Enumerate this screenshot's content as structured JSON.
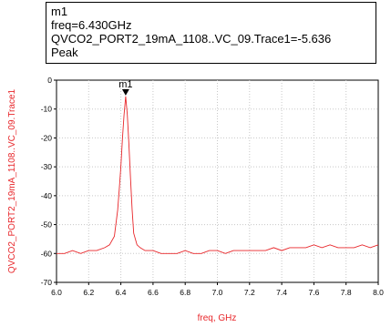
{
  "marker_readout": {
    "lines": [
      "m1",
      "freq=6.430GHz",
      "QVCO2_PORT2_19mA_1108..VC_09.Trace1=-5.636",
      "Peak"
    ]
  },
  "chart_data": {
    "type": "line",
    "title": "",
    "xlabel": "freq, GHz",
    "ylabel": "QVCO2_PORT2_19mA_1108..VC_09.Trace1",
    "xlim": [
      6.0,
      8.0
    ],
    "ylim": [
      -70,
      0
    ],
    "x_ticks": [
      "6.0",
      "6.2",
      "6.4",
      "6.6",
      "6.8",
      "7.0",
      "7.2",
      "7.4",
      "7.6",
      "7.8",
      "8.0"
    ],
    "y_ticks": [
      "0",
      "-10",
      "-20",
      "-30",
      "-40",
      "-50",
      "-60",
      "-70"
    ],
    "grid": true,
    "series_color": "#e8262a",
    "series": [
      {
        "x": [
          6.0,
          6.05,
          6.1,
          6.15,
          6.2,
          6.25,
          6.3,
          6.33,
          6.36,
          6.38,
          6.39,
          6.4,
          6.41,
          6.42,
          6.43,
          6.44,
          6.45,
          6.46,
          6.47,
          6.48,
          6.5,
          6.52,
          6.55,
          6.6,
          6.65,
          6.7,
          6.75,
          6.8,
          6.85,
          6.9,
          6.95,
          7.0,
          7.05,
          7.1,
          7.15,
          7.2,
          7.25,
          7.3,
          7.35,
          7.4,
          7.45,
          7.5,
          7.55,
          7.6,
          7.65,
          7.7,
          7.75,
          7.8,
          7.85,
          7.9,
          7.95,
          8.0
        ],
        "y": [
          -60,
          -60,
          -59,
          -60,
          -59,
          -59,
          -58,
          -57,
          -54,
          -45,
          -38,
          -30,
          -20,
          -12,
          -5.6,
          -12,
          -22,
          -34,
          -45,
          -53,
          -57,
          -58,
          -59,
          -59,
          -60,
          -60,
          -60,
          -59,
          -60,
          -60,
          -59,
          -59,
          -60,
          -59,
          -59,
          -59,
          -59,
          -59,
          -58,
          -59,
          -58,
          -58,
          -58,
          -57,
          -58,
          -57,
          -58,
          -58,
          -58,
          -57,
          -58,
          -57
        ]
      }
    ],
    "markers": [
      {
        "label": "m1",
        "x": 6.43,
        "y": -5.636
      }
    ]
  }
}
